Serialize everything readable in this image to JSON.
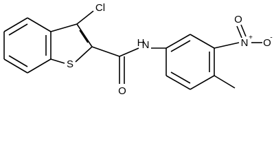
{
  "atoms": {
    "cl": "Cl",
    "s": "S",
    "o_carbonyl": "O",
    "n_amide": "N",
    "h_amide": "H",
    "n_nitro": "N",
    "n_charge": "+",
    "o_nitro_top": "O",
    "o_nitro_right": "O",
    "o_charge": "-"
  }
}
